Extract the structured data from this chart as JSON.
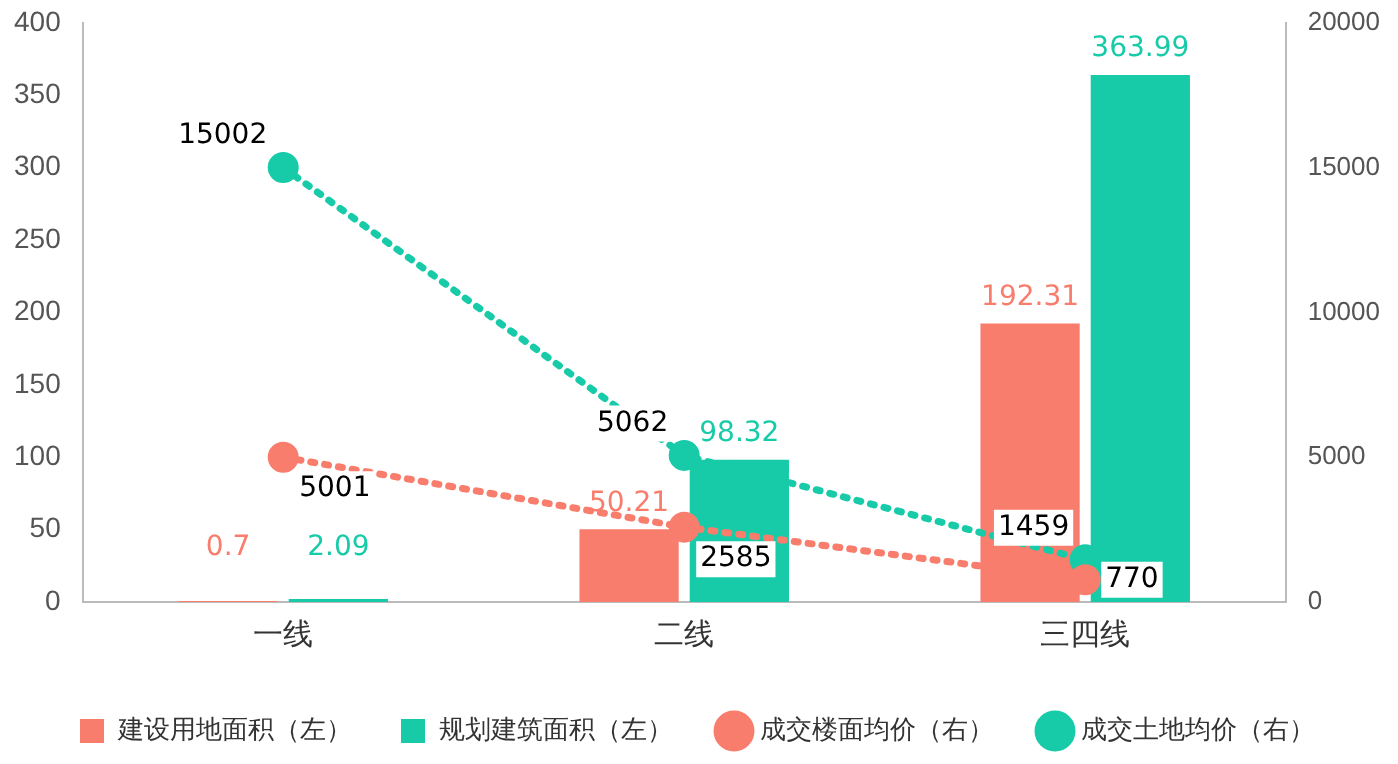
{
  "chart_data": {
    "type": "bar",
    "categories": [
      "一线",
      "二线",
      "三四线"
    ],
    "series": [
      {
        "name": "建设用地面积（左）",
        "color": "#f97d6d",
        "values": [
          0.7,
          50.21,
          192.31
        ]
      },
      {
        "name": "规划建筑面积（左）",
        "color": "#17cba9",
        "values": [
          2.09,
          98.32,
          363.99
        ]
      },
      {
        "name": "成交楼面均价（右）",
        "type": "line",
        "axis": "y2",
        "color": "#f97d6d",
        "values": [
          5001,
          2585,
          770
        ]
      },
      {
        "name": "成交土地均价（右）",
        "type": "line",
        "axis": "y2",
        "color": "#17cba9",
        "values": [
          15002,
          5062,
          1459
        ]
      }
    ],
    "ylim": [
      0,
      400
    ],
    "yticks": [
      0,
      50,
      100,
      150,
      200,
      250,
      300,
      350,
      400
    ],
    "y2lim": [
      0,
      20000
    ],
    "y2ticks": [
      0,
      5000,
      10000,
      15000,
      20000
    ],
    "grid": false,
    "legend": "bottom",
    "marker": "circle",
    "line_style": "dotted",
    "data_labels": true
  }
}
